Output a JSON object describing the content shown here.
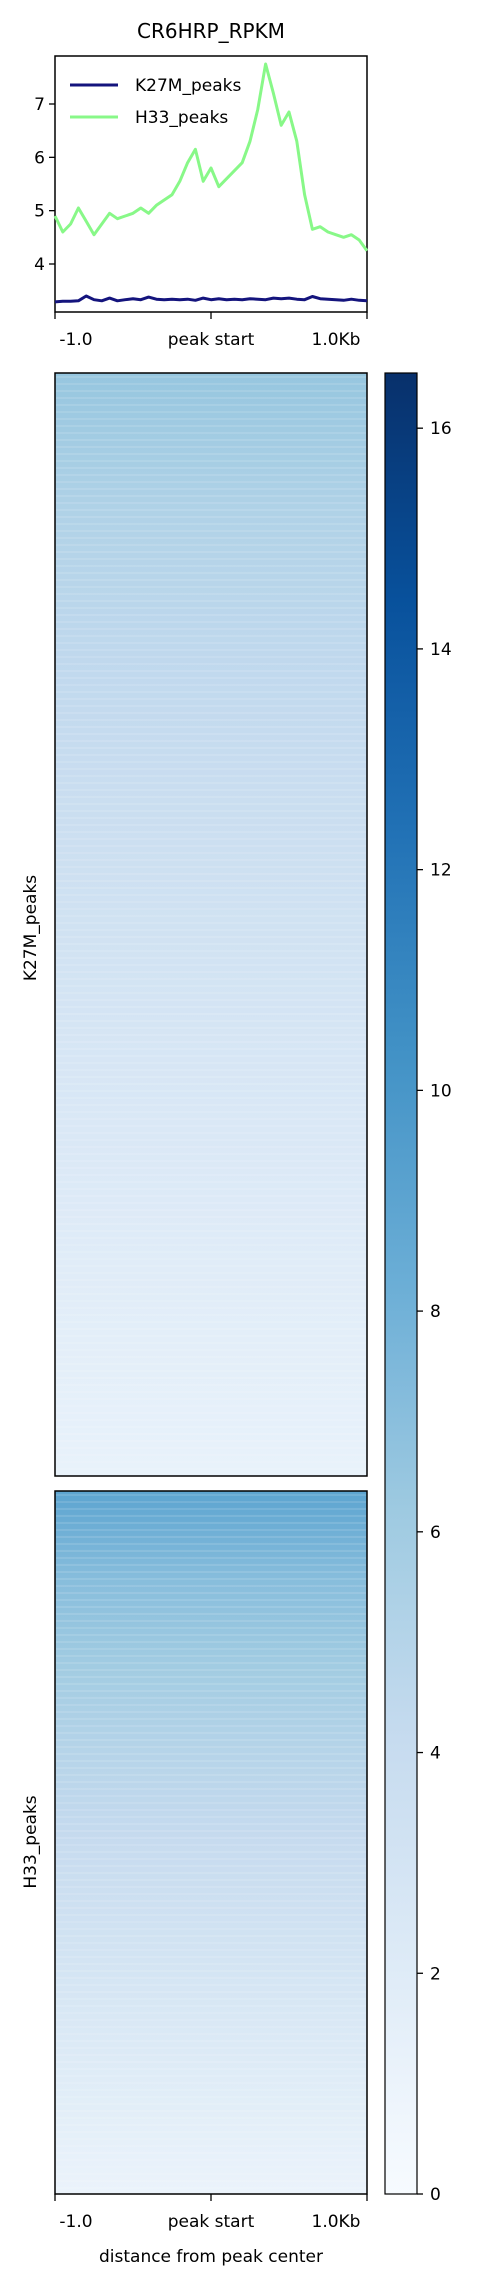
{
  "chart_data": [
    {
      "type": "line",
      "title": "CR6HRP_RPKM",
      "x_tick_labels": [
        "-1.0",
        "peak start",
        "1.0Kb"
      ],
      "x": [
        -1.0,
        -0.95,
        -0.9,
        -0.85,
        -0.8,
        -0.75,
        -0.7,
        -0.65,
        -0.6,
        -0.55,
        -0.5,
        -0.45,
        -0.4,
        -0.35,
        -0.3,
        -0.25,
        -0.2,
        -0.15,
        -0.1,
        -0.05,
        0.0,
        0.05,
        0.1,
        0.15,
        0.2,
        0.25,
        0.3,
        0.35,
        0.4,
        0.45,
        0.5,
        0.55,
        0.6,
        0.65,
        0.7,
        0.75,
        0.8,
        0.85,
        0.9,
        0.95,
        1.0
      ],
      "ylim": [
        3.1,
        7.9
      ],
      "y_ticks": [
        4,
        5,
        6,
        7
      ],
      "legend_position": "top-left",
      "series": [
        {
          "name": "K27M_peaks",
          "color": "#14147d",
          "values": [
            3.29,
            3.3,
            3.3,
            3.31,
            3.4,
            3.33,
            3.31,
            3.36,
            3.31,
            3.33,
            3.35,
            3.33,
            3.38,
            3.34,
            3.33,
            3.34,
            3.33,
            3.34,
            3.32,
            3.36,
            3.33,
            3.35,
            3.33,
            3.34,
            3.33,
            3.35,
            3.34,
            3.33,
            3.36,
            3.35,
            3.36,
            3.34,
            3.33,
            3.39,
            3.35,
            3.34,
            3.33,
            3.32,
            3.34,
            3.32,
            3.31
          ]
        },
        {
          "name": "H33_peaks",
          "color": "#88f888",
          "values": [
            4.9,
            4.6,
            4.75,
            5.05,
            4.8,
            4.55,
            4.75,
            4.95,
            4.85,
            4.9,
            4.95,
            5.05,
            4.95,
            5.1,
            5.2,
            5.3,
            5.55,
            5.9,
            6.15,
            5.55,
            5.8,
            5.45,
            5.6,
            5.75,
            5.9,
            6.3,
            6.9,
            7.75,
            7.2,
            6.6,
            6.85,
            6.3,
            5.3,
            4.65,
            4.7,
            4.6,
            4.55,
            4.5,
            4.55,
            4.45,
            4.25
          ]
        }
      ]
    },
    {
      "type": "heatmap",
      "groups": [
        {
          "name": "K27M_peaks",
          "top_intensity": 6.5,
          "bottom_intensity": 1.2
        },
        {
          "name": "H33_peaks",
          "top_intensity": 9.0,
          "bottom_intensity": 1.0
        }
      ],
      "x_tick_labels": [
        "-1.0",
        "peak start",
        "1.0Kb"
      ],
      "xlabel": "distance from peak center",
      "colorbar": {
        "cmap": "Blues",
        "range": [
          0,
          16.5
        ],
        "ticks": [
          0,
          2,
          4,
          6,
          8,
          10,
          12,
          14,
          16
        ],
        "tick_labels": [
          "0",
          "2",
          "4",
          "6",
          "8",
          "10",
          "12",
          "14",
          "16"
        ]
      }
    }
  ]
}
